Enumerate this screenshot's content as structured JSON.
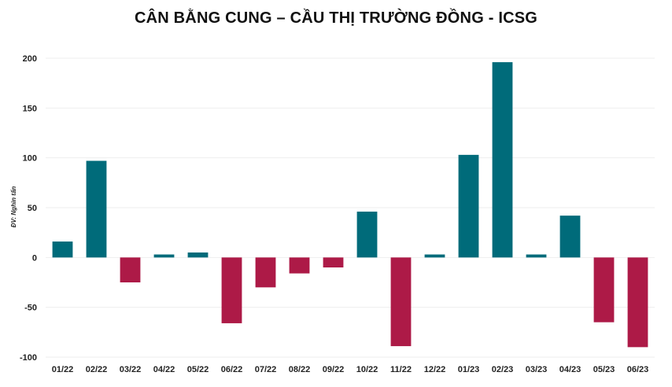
{
  "chart_data": {
    "type": "bar",
    "title": "CÂN BẰNG CUNG – CẦU THỊ TRƯỜNG ĐỒNG - ICSG",
    "xlabel": "",
    "ylabel": "ĐV: Nghìn tấn",
    "ylim": [
      -100,
      200
    ],
    "yticks": [
      200,
      150,
      100,
      50,
      0,
      -50,
      -100
    ],
    "grid": true,
    "legend": "none",
    "categories": [
      "01/22",
      "02/22",
      "03/22",
      "04/22",
      "05/22",
      "06/22",
      "07/22",
      "08/22",
      "09/22",
      "10/22",
      "11/22",
      "12/22",
      "01/23",
      "02/23",
      "03/23",
      "04/23",
      "05/23",
      "06/23"
    ],
    "values": [
      16,
      97,
      -25,
      3,
      5,
      -66,
      -30,
      -16,
      -10,
      46,
      -89,
      3,
      103,
      196,
      3,
      42,
      -65,
      -90
    ],
    "colors": {
      "positive": "#006b7a",
      "negative": "#ad1a47",
      "grid": "#eeeeee"
    }
  }
}
